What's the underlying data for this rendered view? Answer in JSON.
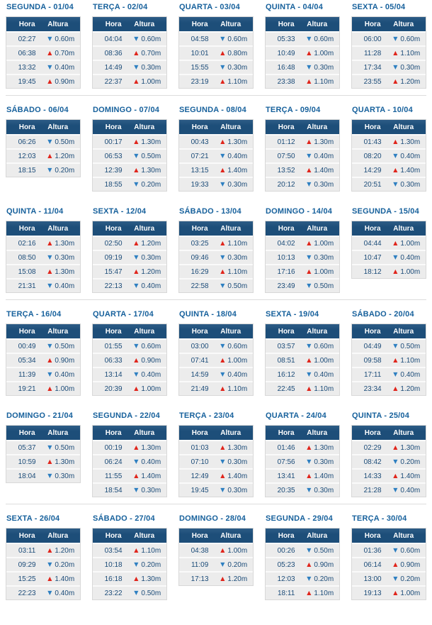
{
  "table": {
    "headers": {
      "hora": "Hora",
      "altura": "Altura"
    }
  },
  "icons": {
    "up": "▲",
    "down": "▼"
  },
  "colors": {
    "header_bg": "#1d4e79",
    "title_text": "#17619c",
    "cell_text": "#1b4b78",
    "rising_arrow": "#e0251c",
    "falling_arrow": "#2e7fc1",
    "row_bg": "#ececec",
    "card_border": "#d8d8d8",
    "section_divider": "#dcdcdc"
  },
  "week_rows": [
    [
      0,
      1,
      2,
      3,
      4
    ],
    [
      5,
      6,
      7,
      8,
      9
    ],
    [
      10,
      11,
      12,
      13,
      14
    ],
    [
      15,
      16,
      17,
      18,
      19
    ],
    [
      20,
      21,
      22,
      23,
      24
    ],
    [
      25,
      26,
      27,
      28,
      29
    ]
  ],
  "dividers_after_week_rows": [
    0,
    2,
    4
  ],
  "days": [
    {
      "title": "SEGUNDA - 01/04",
      "entries": [
        {
          "time": "02:27",
          "trend": "down",
          "height": "0.60m"
        },
        {
          "time": "06:38",
          "trend": "up",
          "height": "0.70m"
        },
        {
          "time": "13:32",
          "trend": "down",
          "height": "0.40m"
        },
        {
          "time": "19:45",
          "trend": "up",
          "height": "0.90m"
        }
      ]
    },
    {
      "title": "TERÇA - 02/04",
      "entries": [
        {
          "time": "04:04",
          "trend": "down",
          "height": "0.60m"
        },
        {
          "time": "08:36",
          "trend": "up",
          "height": "0.70m"
        },
        {
          "time": "14:49",
          "trend": "down",
          "height": "0.30m"
        },
        {
          "time": "22:37",
          "trend": "up",
          "height": "1.00m"
        }
      ]
    },
    {
      "title": "QUARTA - 03/04",
      "entries": [
        {
          "time": "04:58",
          "trend": "down",
          "height": "0.60m"
        },
        {
          "time": "10:01",
          "trend": "up",
          "height": "0.80m"
        },
        {
          "time": "15:55",
          "trend": "down",
          "height": "0.30m"
        },
        {
          "time": "23:19",
          "trend": "up",
          "height": "1.10m"
        }
      ]
    },
    {
      "title": "QUINTA - 04/04",
      "entries": [
        {
          "time": "05:33",
          "trend": "down",
          "height": "0.60m"
        },
        {
          "time": "10:49",
          "trend": "up",
          "height": "1.00m"
        },
        {
          "time": "16:48",
          "trend": "down",
          "height": "0.30m"
        },
        {
          "time": "23:38",
          "trend": "up",
          "height": "1.10m"
        }
      ]
    },
    {
      "title": "SEXTA - 05/04",
      "entries": [
        {
          "time": "06:00",
          "trend": "down",
          "height": "0.60m"
        },
        {
          "time": "11:28",
          "trend": "up",
          "height": "1.10m"
        },
        {
          "time": "17:34",
          "trend": "down",
          "height": "0.30m"
        },
        {
          "time": "23:55",
          "trend": "up",
          "height": "1.20m"
        }
      ]
    },
    {
      "title": "SÁBADO - 06/04",
      "entries": [
        {
          "time": "06:26",
          "trend": "down",
          "height": "0.50m"
        },
        {
          "time": "12:03",
          "trend": "up",
          "height": "1.20m"
        },
        {
          "time": "18:15",
          "trend": "down",
          "height": "0.20m"
        }
      ]
    },
    {
      "title": "DOMINGO - 07/04",
      "entries": [
        {
          "time": "00:17",
          "trend": "up",
          "height": "1.30m"
        },
        {
          "time": "06:53",
          "trend": "down",
          "height": "0.50m"
        },
        {
          "time": "12:39",
          "trend": "up",
          "height": "1.30m"
        },
        {
          "time": "18:55",
          "trend": "down",
          "height": "0.20m"
        }
      ]
    },
    {
      "title": "SEGUNDA - 08/04",
      "entries": [
        {
          "time": "00:43",
          "trend": "up",
          "height": "1.30m"
        },
        {
          "time": "07:21",
          "trend": "down",
          "height": "0.40m"
        },
        {
          "time": "13:15",
          "trend": "up",
          "height": "1.40m"
        },
        {
          "time": "19:33",
          "trend": "down",
          "height": "0.30m"
        }
      ]
    },
    {
      "title": "TERÇA - 09/04",
      "entries": [
        {
          "time": "01:12",
          "trend": "up",
          "height": "1.30m"
        },
        {
          "time": "07:50",
          "trend": "down",
          "height": "0.40m"
        },
        {
          "time": "13:52",
          "trend": "up",
          "height": "1.40m"
        },
        {
          "time": "20:12",
          "trend": "down",
          "height": "0.30m"
        }
      ]
    },
    {
      "title": "QUARTA - 10/04",
      "entries": [
        {
          "time": "01:43",
          "trend": "up",
          "height": "1.30m"
        },
        {
          "time": "08:20",
          "trend": "down",
          "height": "0.40m"
        },
        {
          "time": "14:29",
          "trend": "up",
          "height": "1.40m"
        },
        {
          "time": "20:51",
          "trend": "down",
          "height": "0.30m"
        }
      ]
    },
    {
      "title": "QUINTA - 11/04",
      "entries": [
        {
          "time": "02:16",
          "trend": "up",
          "height": "1.30m"
        },
        {
          "time": "08:50",
          "trend": "down",
          "height": "0.30m"
        },
        {
          "time": "15:08",
          "trend": "up",
          "height": "1.30m"
        },
        {
          "time": "21:31",
          "trend": "down",
          "height": "0.40m"
        }
      ]
    },
    {
      "title": "SEXTA - 12/04",
      "entries": [
        {
          "time": "02:50",
          "trend": "up",
          "height": "1.20m"
        },
        {
          "time": "09:19",
          "trend": "down",
          "height": "0.30m"
        },
        {
          "time": "15:47",
          "trend": "up",
          "height": "1.20m"
        },
        {
          "time": "22:13",
          "trend": "down",
          "height": "0.40m"
        }
      ]
    },
    {
      "title": "SÁBADO - 13/04",
      "entries": [
        {
          "time": "03:25",
          "trend": "up",
          "height": "1.10m"
        },
        {
          "time": "09:46",
          "trend": "down",
          "height": "0.30m"
        },
        {
          "time": "16:29",
          "trend": "up",
          "height": "1.10m"
        },
        {
          "time": "22:58",
          "trend": "down",
          "height": "0.50m"
        }
      ]
    },
    {
      "title": "DOMINGO - 14/04",
      "entries": [
        {
          "time": "04:02",
          "trend": "up",
          "height": "1.00m"
        },
        {
          "time": "10:13",
          "trend": "down",
          "height": "0.30m"
        },
        {
          "time": "17:16",
          "trend": "up",
          "height": "1.00m"
        },
        {
          "time": "23:49",
          "trend": "down",
          "height": "0.50m"
        }
      ]
    },
    {
      "title": "SEGUNDA - 15/04",
      "entries": [
        {
          "time": "04:44",
          "trend": "up",
          "height": "1.00m"
        },
        {
          "time": "10:47",
          "trend": "down",
          "height": "0.40m"
        },
        {
          "time": "18:12",
          "trend": "up",
          "height": "1.00m"
        }
      ]
    },
    {
      "title": "TERÇA - 16/04",
      "entries": [
        {
          "time": "00:49",
          "trend": "down",
          "height": "0.50m"
        },
        {
          "time": "05:34",
          "trend": "up",
          "height": "0.90m"
        },
        {
          "time": "11:39",
          "trend": "down",
          "height": "0.40m"
        },
        {
          "time": "19:21",
          "trend": "up",
          "height": "1.00m"
        }
      ]
    },
    {
      "title": "QUARTA - 17/04",
      "entries": [
        {
          "time": "01:55",
          "trend": "down",
          "height": "0.60m"
        },
        {
          "time": "06:33",
          "trend": "up",
          "height": "0.90m"
        },
        {
          "time": "13:14",
          "trend": "down",
          "height": "0.40m"
        },
        {
          "time": "20:39",
          "trend": "up",
          "height": "1.00m"
        }
      ]
    },
    {
      "title": "QUINTA - 18/04",
      "entries": [
        {
          "time": "03:00",
          "trend": "down",
          "height": "0.60m"
        },
        {
          "time": "07:41",
          "trend": "up",
          "height": "1.00m"
        },
        {
          "time": "14:59",
          "trend": "down",
          "height": "0.40m"
        },
        {
          "time": "21:49",
          "trend": "up",
          "height": "1.10m"
        }
      ]
    },
    {
      "title": "SEXTA - 19/04",
      "entries": [
        {
          "time": "03:57",
          "trend": "down",
          "height": "0.60m"
        },
        {
          "time": "08:51",
          "trend": "up",
          "height": "1.00m"
        },
        {
          "time": "16:12",
          "trend": "down",
          "height": "0.40m"
        },
        {
          "time": "22:45",
          "trend": "up",
          "height": "1.10m"
        }
      ]
    },
    {
      "title": "SÁBADO - 20/04",
      "entries": [
        {
          "time": "04:49",
          "trend": "down",
          "height": "0.50m"
        },
        {
          "time": "09:58",
          "trend": "up",
          "height": "1.10m"
        },
        {
          "time": "17:11",
          "trend": "down",
          "height": "0.40m"
        },
        {
          "time": "23:34",
          "trend": "up",
          "height": "1.20m"
        }
      ]
    },
    {
      "title": "DOMINGO - 21/04",
      "entries": [
        {
          "time": "05:37",
          "trend": "down",
          "height": "0.50m"
        },
        {
          "time": "10:59",
          "trend": "up",
          "height": "1.30m"
        },
        {
          "time": "18:04",
          "trend": "down",
          "height": "0.30m"
        }
      ]
    },
    {
      "title": "SEGUNDA - 22/04",
      "entries": [
        {
          "time": "00:19",
          "trend": "up",
          "height": "1.30m"
        },
        {
          "time": "06:24",
          "trend": "down",
          "height": "0.40m"
        },
        {
          "time": "11:55",
          "trend": "up",
          "height": "1.40m"
        },
        {
          "time": "18:54",
          "trend": "down",
          "height": "0.30m"
        }
      ]
    },
    {
      "title": "TERÇA - 23/04",
      "entries": [
        {
          "time": "01:03",
          "trend": "up",
          "height": "1.30m"
        },
        {
          "time": "07:10",
          "trend": "down",
          "height": "0.30m"
        },
        {
          "time": "12:49",
          "trend": "up",
          "height": "1.40m"
        },
        {
          "time": "19:45",
          "trend": "down",
          "height": "0.30m"
        }
      ]
    },
    {
      "title": "QUARTA - 24/04",
      "entries": [
        {
          "time": "01:46",
          "trend": "up",
          "height": "1.30m"
        },
        {
          "time": "07:56",
          "trend": "down",
          "height": "0.30m"
        },
        {
          "time": "13:41",
          "trend": "up",
          "height": "1.40m"
        },
        {
          "time": "20:35",
          "trend": "down",
          "height": "0.30m"
        }
      ]
    },
    {
      "title": "QUINTA - 25/04",
      "entries": [
        {
          "time": "02:29",
          "trend": "up",
          "height": "1.30m"
        },
        {
          "time": "08:42",
          "trend": "down",
          "height": "0.20m"
        },
        {
          "time": "14:33",
          "trend": "up",
          "height": "1.40m"
        },
        {
          "time": "21:28",
          "trend": "down",
          "height": "0.40m"
        }
      ]
    },
    {
      "title": "SEXTA - 26/04",
      "entries": [
        {
          "time": "03:11",
          "trend": "up",
          "height": "1.20m"
        },
        {
          "time": "09:29",
          "trend": "down",
          "height": "0.20m"
        },
        {
          "time": "15:25",
          "trend": "up",
          "height": "1.40m"
        },
        {
          "time": "22:23",
          "trend": "down",
          "height": "0.40m"
        }
      ]
    },
    {
      "title": "SÁBADO - 27/04",
      "entries": [
        {
          "time": "03:54",
          "trend": "up",
          "height": "1.10m"
        },
        {
          "time": "10:18",
          "trend": "down",
          "height": "0.20m"
        },
        {
          "time": "16:18",
          "trend": "up",
          "height": "1.30m"
        },
        {
          "time": "23:22",
          "trend": "down",
          "height": "0.50m"
        }
      ]
    },
    {
      "title": "DOMINGO - 28/04",
      "entries": [
        {
          "time": "04:38",
          "trend": "up",
          "height": "1.00m"
        },
        {
          "time": "11:09",
          "trend": "down",
          "height": "0.20m"
        },
        {
          "time": "17:13",
          "trend": "up",
          "height": "1.20m"
        }
      ]
    },
    {
      "title": "SEGUNDA - 29/04",
      "entries": [
        {
          "time": "00:26",
          "trend": "down",
          "height": "0.50m"
        },
        {
          "time": "05:23",
          "trend": "up",
          "height": "0.90m"
        },
        {
          "time": "12:03",
          "trend": "down",
          "height": "0.20m"
        },
        {
          "time": "18:11",
          "trend": "up",
          "height": "1.10m"
        }
      ]
    },
    {
      "title": "TERÇA - 30/04",
      "entries": [
        {
          "time": "01:36",
          "trend": "down",
          "height": "0.60m"
        },
        {
          "time": "06:14",
          "trend": "up",
          "height": "0.90m"
        },
        {
          "time": "13:00",
          "trend": "down",
          "height": "0.20m"
        },
        {
          "time": "19:13",
          "trend": "up",
          "height": "1.00m"
        }
      ]
    }
  ]
}
